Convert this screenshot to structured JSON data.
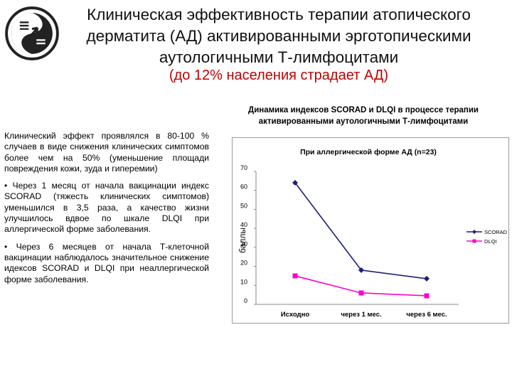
{
  "header": {
    "title": "Клиническая эффективность терапии атопического дерматита (АД) активированными эрготопическими аутологичными Т-лимфоцитами",
    "subtitle": "(до 12% населения страдает АД)"
  },
  "left_text": {
    "p1": "Клинический эффект проявлялся в 80-100 % случаев в виде снижения клинических симптомов более чем на 50% (уменьшение площади повреждения кожи, зуда и гиперемии)",
    "p2": "• Через 1 месяц от начала вакцинации индекс SCORAD (тяжесть клинических симптомов) уменьшился в 3,5 раза, а качество жизни улучшилось вдвое по шкале DLQI при аллергической форме заболевания.",
    "p3": "• Через 6 месяцев от начала Т-клеточной вакцинации наблюдалось значительное снижение идексов SCORAD и DLQI при неаллергической форме заболевания."
  },
  "chart_title": "Динамика индексов SCORAD и DLQI в процессе терапии активированными аутологичными Т-лимфоцитами",
  "chart_data": {
    "type": "line",
    "title": "При аллергической форме АД (n=23)",
    "xlabel": "",
    "ylabel": "баллы",
    "categories": [
      "Исходно",
      "через 1 мес.",
      "через 6 мес."
    ],
    "ylim": [
      0,
      70
    ],
    "yticks": [
      "0",
      "10",
      "20",
      "30",
      "40",
      "50",
      "60",
      "70"
    ],
    "grid": false,
    "legend_position": "right",
    "series": [
      {
        "name": "SCORAD",
        "values": [
          64,
          18,
          13.5
        ],
        "color": "#1f1f7a",
        "marker": "diamond"
      },
      {
        "name": "DLQI",
        "values": [
          15,
          6,
          4.5
        ],
        "color": "#ff00cc",
        "marker": "square"
      }
    ]
  }
}
